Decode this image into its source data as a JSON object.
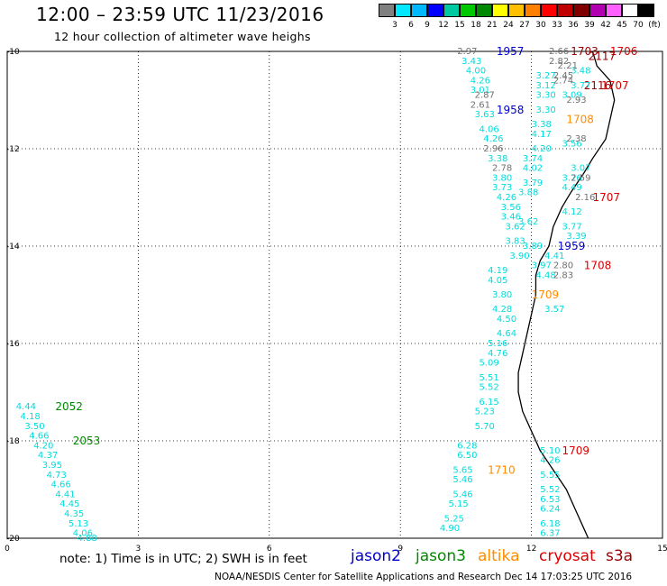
{
  "header": {
    "title": "12:00 – 23:59 UTC 11/23/2016",
    "subtitle": "12 hour collection of altimeter wave heighs"
  },
  "color_legend": {
    "colors": [
      "#808080",
      "#00e8ff",
      "#00b8ff",
      "#0000ff",
      "#00c8a0",
      "#00c800",
      "#008800",
      "#ffff00",
      "#ffc000",
      "#ff8000",
      "#ff0000",
      "#c00000",
      "#800000",
      "#b000b0",
      "#ff60ff",
      "#ffffff",
      "#000000"
    ],
    "labels": [
      "3",
      "6",
      "9",
      "12",
      "15",
      "18",
      "21",
      "24",
      "27",
      "30",
      "33",
      "36",
      "39",
      "42",
      "45",
      "70",
      "(ft)"
    ]
  },
  "footnote": "note: 1) Time is in UTC; 2) SWH is in feet",
  "satellites": [
    {
      "name": "jason2",
      "color": "#0000cc"
    },
    {
      "name": "jason3",
      "color": "#008800"
    },
    {
      "name": "altika",
      "color": "#ff8c00"
    },
    {
      "name": "cryosat",
      "color": "#dd0000"
    },
    {
      "name": "s3a",
      "color": "#990000"
    }
  ],
  "credit": "NOAA/NESDIS Center for Satellite Applications and Research    Dec 14 17:03:25 UTC 2016",
  "chart_data": {
    "type": "scatter",
    "xlim": [
      0,
      15
    ],
    "ylim": [
      -20,
      -10
    ],
    "xticks": [
      "0",
      "3",
      "6",
      "9",
      "12",
      "15"
    ],
    "yticks": [
      "-10",
      "-12",
      "-14",
      "-16",
      "-18",
      "-20"
    ],
    "grid": true,
    "series": [
      {
        "name": "jason2",
        "labels": [
          {
            "t": "1957",
            "x": 11.2,
            "y": -10.0
          },
          {
            "t": "1958",
            "x": 11.2,
            "y": -11.2
          },
          {
            "t": "1959",
            "x": 12.6,
            "y": -14.0
          }
        ]
      },
      {
        "name": "jason3",
        "labels": [
          {
            "t": "2052",
            "x": 1.1,
            "y": -17.3
          },
          {
            "t": "2053",
            "x": 1.5,
            "y": -18.0
          }
        ]
      },
      {
        "name": "altika",
        "labels": [
          {
            "t": "1708",
            "x": 12.8,
            "y": -11.4
          },
          {
            "t": "1709",
            "x": 12.0,
            "y": -15.0
          },
          {
            "t": "1710",
            "x": 11.0,
            "y": -18.6
          }
        ]
      },
      {
        "name": "cryosat",
        "labels": [
          {
            "t": "1706",
            "x": 13.8,
            "y": -10.0
          },
          {
            "t": "1707",
            "x": 13.6,
            "y": -10.7
          },
          {
            "t": "1707",
            "x": 13.4,
            "y": -13.0
          },
          {
            "t": "1708",
            "x": 13.2,
            "y": -14.4
          },
          {
            "t": "1709",
            "x": 12.7,
            "y": -18.2
          }
        ]
      },
      {
        "name": "s3a",
        "labels": [
          {
            "t": "1703",
            "x": 12.9,
            "y": -10.0
          },
          {
            "t": "2117",
            "x": 13.3,
            "y": -10.1
          },
          {
            "t": "2116",
            "x": 13.2,
            "y": -10.7
          }
        ]
      },
      {
        "name": "swh_cyan",
        "color": "#00dddd",
        "points": [
          {
            "v": "3.43",
            "x": 10.4,
            "y": -10.2
          },
          {
            "v": "4.00",
            "x": 10.5,
            "y": -10.4
          },
          {
            "v": "4.26",
            "x": 10.6,
            "y": -10.6
          },
          {
            "v": "3.01",
            "x": 10.6,
            "y": -10.8
          },
          {
            "v": "3.63",
            "x": 10.7,
            "y": -11.3
          },
          {
            "v": "4.06",
            "x": 10.8,
            "y": -11.6
          },
          {
            "v": "4.26",
            "x": 10.9,
            "y": -11.8
          },
          {
            "v": "3.38",
            "x": 11.0,
            "y": -12.2
          },
          {
            "v": "3.80",
            "x": 11.1,
            "y": -12.6
          },
          {
            "v": "3.73",
            "x": 11.1,
            "y": -12.8
          },
          {
            "v": "4.26",
            "x": 11.2,
            "y": -13.0
          },
          {
            "v": "3.56",
            "x": 11.3,
            "y": -13.2
          },
          {
            "v": "3.46",
            "x": 11.3,
            "y": -13.4
          },
          {
            "v": "3.62",
            "x": 11.4,
            "y": -13.6
          },
          {
            "v": "3.83",
            "x": 11.4,
            "y": -13.9
          },
          {
            "v": "3.90",
            "x": 11.5,
            "y": -14.2
          },
          {
            "v": "4.19",
            "x": 11.0,
            "y": -14.5
          },
          {
            "v": "4.05",
            "x": 11.0,
            "y": -14.7
          },
          {
            "v": "3.80",
            "x": 11.1,
            "y": -15.0
          },
          {
            "v": "4.28",
            "x": 11.1,
            "y": -15.3
          },
          {
            "v": "4.50",
            "x": 11.2,
            "y": -15.5
          },
          {
            "v": "4.64",
            "x": 11.2,
            "y": -15.8
          },
          {
            "v": "5.16",
            "x": 11.0,
            "y": -16.0
          },
          {
            "v": "4.76",
            "x": 11.0,
            "y": -16.2
          },
          {
            "v": "5.09",
            "x": 10.8,
            "y": -16.4
          },
          {
            "v": "5.51",
            "x": 10.8,
            "y": -16.7
          },
          {
            "v": "5.52",
            "x": 10.8,
            "y": -16.9
          },
          {
            "v": "6.15",
            "x": 10.8,
            "y": -17.2
          },
          {
            "v": "5.23",
            "x": 10.7,
            "y": -17.4
          },
          {
            "v": "5.70",
            "x": 10.7,
            "y": -17.7
          },
          {
            "v": "6.28",
            "x": 10.3,
            "y": -18.1
          },
          {
            "v": "6.50",
            "x": 10.3,
            "y": -18.3
          },
          {
            "v": "5.65",
            "x": 10.2,
            "y": -18.6
          },
          {
            "v": "5.46",
            "x": 10.2,
            "y": -18.8
          },
          {
            "v": "5.46",
            "x": 10.2,
            "y": -19.1
          },
          {
            "v": "5.15",
            "x": 10.1,
            "y": -19.3
          },
          {
            "v": "5.25",
            "x": 10.0,
            "y": -19.6
          },
          {
            "v": "4.90",
            "x": 9.9,
            "y": -19.8
          },
          {
            "v": "4.44",
            "x": 0.2,
            "y": -17.3
          },
          {
            "v": "4.18",
            "x": 0.3,
            "y": -17.5
          },
          {
            "v": "3.50",
            "x": 0.4,
            "y": -17.7
          },
          {
            "v": "4.66",
            "x": 0.5,
            "y": -17.9
          },
          {
            "v": "4.20",
            "x": 0.6,
            "y": -18.1
          },
          {
            "v": "4.37",
            "x": 0.7,
            "y": -18.3
          },
          {
            "v": "3.95",
            "x": 0.8,
            "y": -18.5
          },
          {
            "v": "4.73",
            "x": 0.9,
            "y": -18.7
          },
          {
            "v": "4.66",
            "x": 1.0,
            "y": -18.9
          },
          {
            "v": "4.41",
            "x": 1.1,
            "y": -19.1
          },
          {
            "v": "4.45",
            "x": 1.2,
            "y": -19.3
          },
          {
            "v": "4.35",
            "x": 1.3,
            "y": -19.5
          },
          {
            "v": "5.13",
            "x": 1.4,
            "y": -19.7
          },
          {
            "v": "4.06",
            "x": 1.5,
            "y": -19.9
          },
          {
            "v": "4.88",
            "x": 1.6,
            "y": -20.0
          },
          {
            "v": "3.30",
            "x": 12.1,
            "y": -10.9
          },
          {
            "v": "3.12",
            "x": 12.1,
            "y": -10.7
          },
          {
            "v": "3.27",
            "x": 12.1,
            "y": -10.5
          },
          {
            "v": "3.30",
            "x": 12.1,
            "y": -11.2
          },
          {
            "v": "3.38",
            "x": 12.0,
            "y": -11.5
          },
          {
            "v": "4.17",
            "x": 12.0,
            "y": -11.7
          },
          {
            "v": "4.20",
            "x": 12.0,
            "y": -12.0
          },
          {
            "v": "3.74",
            "x": 11.8,
            "y": -12.2
          },
          {
            "v": "4.02",
            "x": 11.8,
            "y": -12.4
          },
          {
            "v": "3.79",
            "x": 11.8,
            "y": -12.7
          },
          {
            "v": "3.88",
            "x": 11.7,
            "y": -12.9
          },
          {
            "v": "3.62",
            "x": 11.7,
            "y": -13.5
          },
          {
            "v": "3.89",
            "x": 11.8,
            "y": -14.0
          },
          {
            "v": "3.97",
            "x": 12.0,
            "y": -14.4
          },
          {
            "v": "4.41",
            "x": 12.3,
            "y": -14.2
          },
          {
            "v": "4.48",
            "x": 12.1,
            "y": -14.6
          },
          {
            "v": "3.57",
            "x": 12.3,
            "y": -15.3
          },
          {
            "v": "5.10",
            "x": 12.2,
            "y": -18.2
          },
          {
            "v": "4.26",
            "x": 12.2,
            "y": -18.4
          },
          {
            "v": "5.55",
            "x": 12.2,
            "y": -18.7
          },
          {
            "v": "5.52",
            "x": 12.2,
            "y": -19.0
          },
          {
            "v": "6.53",
            "x": 12.2,
            "y": -19.2
          },
          {
            "v": "6.24",
            "x": 12.2,
            "y": -19.4
          },
          {
            "v": "6.18",
            "x": 12.2,
            "y": -19.7
          },
          {
            "v": "6.37",
            "x": 12.2,
            "y": -19.9
          },
          {
            "v": "3.48",
            "x": 12.9,
            "y": -10.4
          },
          {
            "v": "3.77",
            "x": 12.9,
            "y": -10.7
          },
          {
            "v": "3.09",
            "x": 12.7,
            "y": -10.9
          },
          {
            "v": "3.56",
            "x": 12.7,
            "y": -11.9
          },
          {
            "v": "3.07",
            "x": 12.9,
            "y": -12.4
          },
          {
            "v": "3.76",
            "x": 12.7,
            "y": -12.6
          },
          {
            "v": "4.49",
            "x": 12.7,
            "y": -12.8
          },
          {
            "v": "4.12",
            "x": 12.7,
            "y": -13.3
          },
          {
            "v": "3.77",
            "x": 12.7,
            "y": -13.6
          },
          {
            "v": "3.39",
            "x": 12.8,
            "y": -13.8
          }
        ]
      },
      {
        "name": "swh_grey",
        "color": "#707070",
        "points": [
          {
            "v": "2.97",
            "x": 10.3,
            "y": -10.0
          },
          {
            "v": "2.87",
            "x": 10.7,
            "y": -10.9
          },
          {
            "v": "2.61",
            "x": 10.6,
            "y": -11.1
          },
          {
            "v": "2.96",
            "x": 10.9,
            "y": -12.0
          },
          {
            "v": "2.78",
            "x": 11.1,
            "y": -12.4
          },
          {
            "v": "2.66",
            "x": 12.4,
            "y": -10.0
          },
          {
            "v": "2.82",
            "x": 12.4,
            "y": -10.2
          },
          {
            "v": "2.21",
            "x": 12.6,
            "y": -10.3
          },
          {
            "v": "2.45",
            "x": 12.5,
            "y": -10.5
          },
          {
            "v": "2.74",
            "x": 12.5,
            "y": -10.6
          },
          {
            "v": "2.93",
            "x": 12.8,
            "y": -11.0
          },
          {
            "v": "2.38",
            "x": 12.8,
            "y": -11.8
          },
          {
            "v": "2.59",
            "x": 12.9,
            "y": -12.6
          },
          {
            "v": "2.16",
            "x": 13.0,
            "y": -13.0
          },
          {
            "v": "2.80",
            "x": 12.5,
            "y": -14.4
          },
          {
            "v": "2.83",
            "x": 12.5,
            "y": -14.6
          }
        ]
      }
    ]
  }
}
